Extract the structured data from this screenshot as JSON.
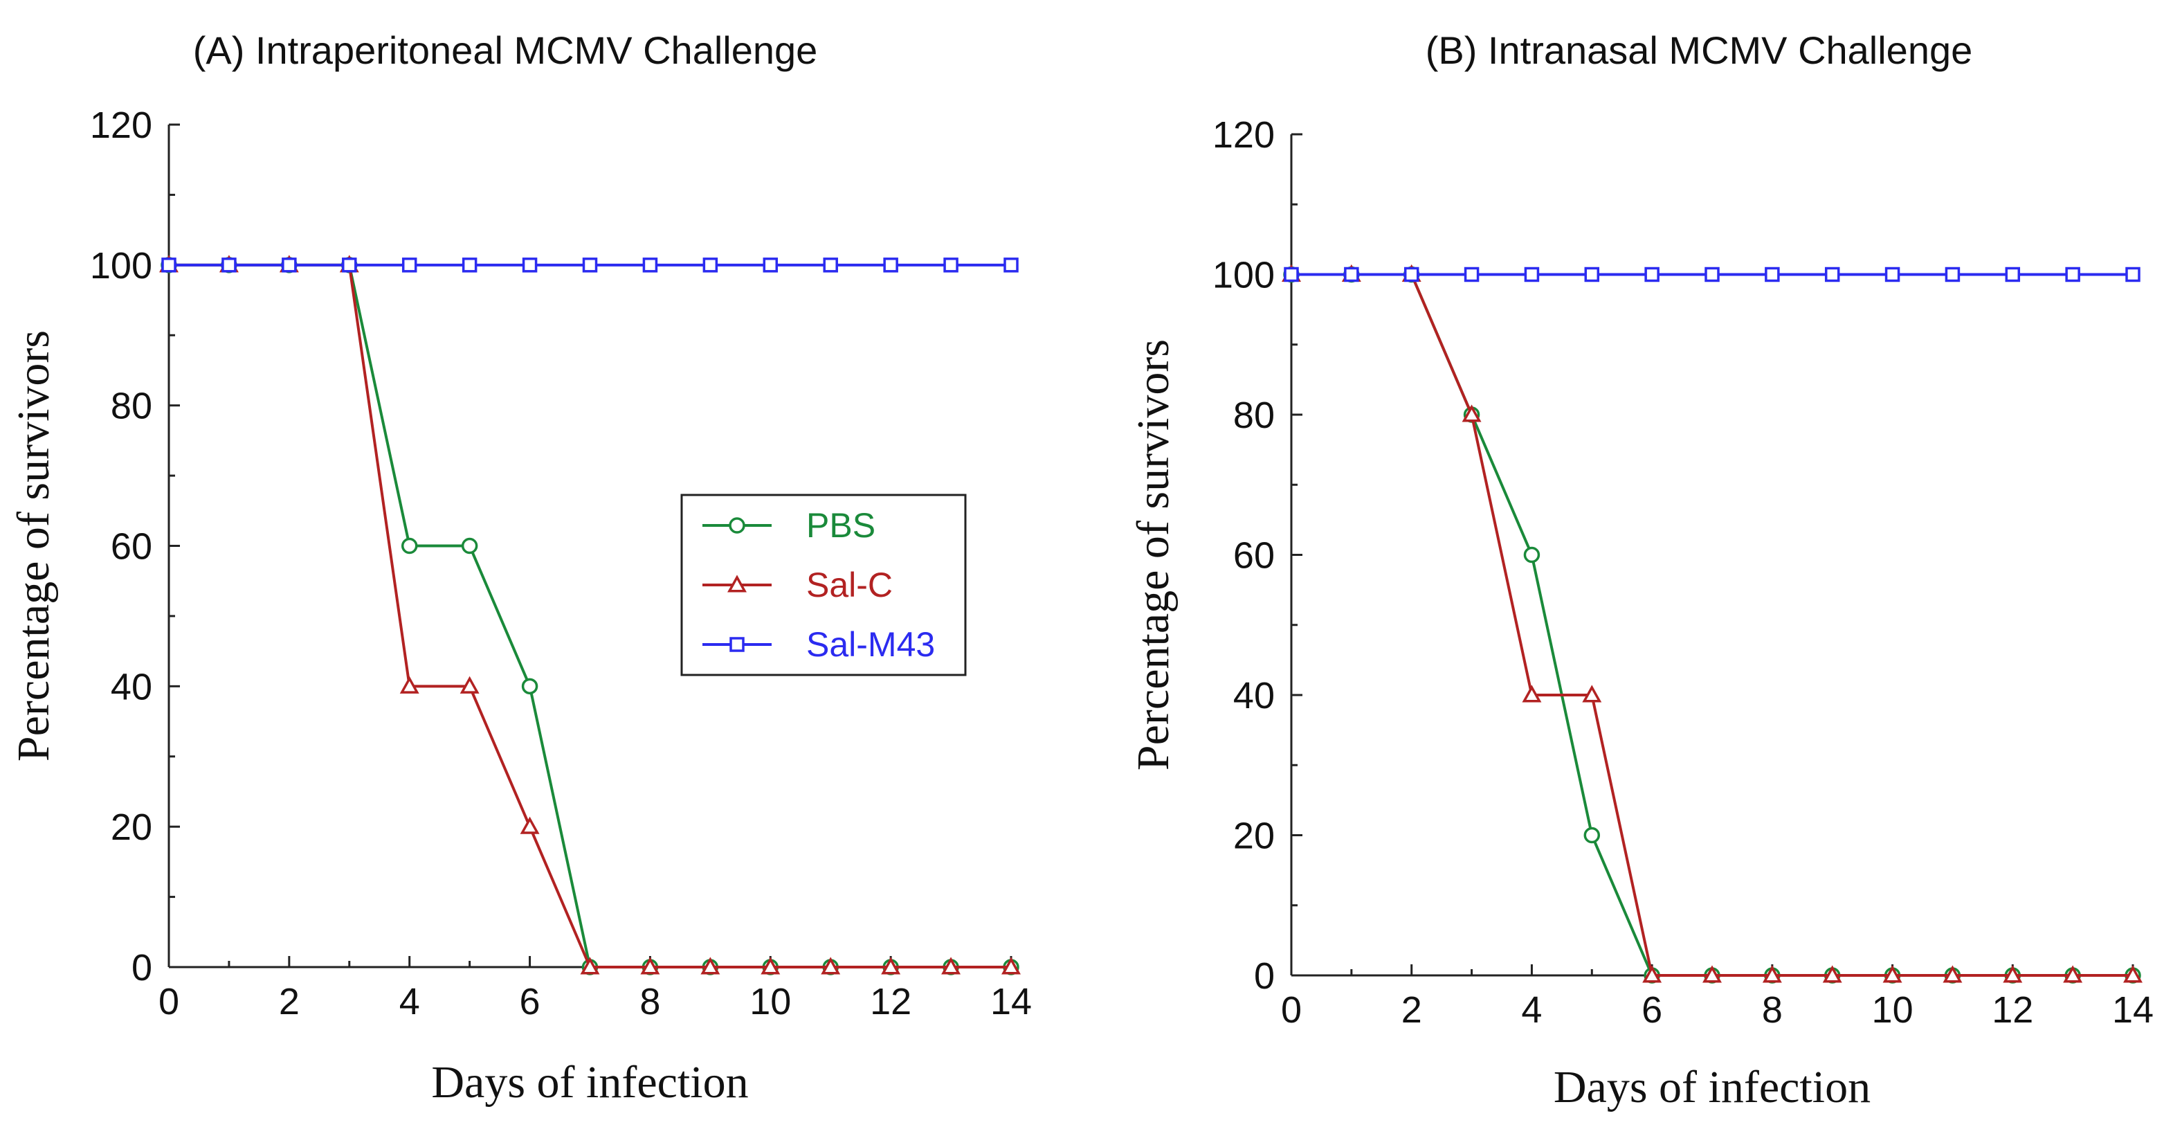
{
  "chart_data": [
    {
      "type": "line",
      "title": "(A) Intraperitoneal MCMV Challenge",
      "xlabel": "Days of infection",
      "ylabel": "Percentage of survivors",
      "xlim": [
        0,
        14
      ],
      "ylim": [
        0,
        120
      ],
      "xticks": [
        0,
        2,
        4,
        6,
        8,
        10,
        12,
        14
      ],
      "yticks": [
        0,
        20,
        40,
        60,
        80,
        100,
        120
      ],
      "x": [
        0,
        1,
        2,
        3,
        4,
        5,
        6,
        7,
        8,
        9,
        10,
        11,
        12,
        13,
        14
      ],
      "legend": "center-right",
      "series": [
        {
          "name": "PBS",
          "color": "#1a8a3a",
          "marker": "circle",
          "values": [
            100,
            100,
            100,
            100,
            60,
            60,
            40,
            0,
            0,
            0,
            0,
            0,
            0,
            0,
            0
          ]
        },
        {
          "name": "Sal-C",
          "color": "#b22222",
          "marker": "triangle",
          "values": [
            100,
            100,
            100,
            100,
            40,
            40,
            20,
            0,
            0,
            0,
            0,
            0,
            0,
            0,
            0
          ]
        },
        {
          "name": "Sal-M43",
          "color": "#2b2bf0",
          "marker": "square",
          "values": [
            100,
            100,
            100,
            100,
            100,
            100,
            100,
            100,
            100,
            100,
            100,
            100,
            100,
            100,
            100
          ]
        }
      ]
    },
    {
      "type": "line",
      "title": "(B) Intranasal MCMV Challenge",
      "xlabel": "Days of infection",
      "ylabel": "Percentage of survivors",
      "xlim": [
        0,
        14
      ],
      "ylim": [
        0,
        120
      ],
      "xticks": [
        0,
        2,
        4,
        6,
        8,
        10,
        12,
        14
      ],
      "yticks": [
        0,
        20,
        40,
        60,
        80,
        100,
        120
      ],
      "x": [
        0,
        1,
        2,
        3,
        4,
        5,
        6,
        7,
        8,
        9,
        10,
        11,
        12,
        13,
        14
      ],
      "legend": "none",
      "series": [
        {
          "name": "PBS",
          "color": "#1a8a3a",
          "marker": "circle",
          "values": [
            100,
            100,
            100,
            80,
            60,
            20,
            0,
            0,
            0,
            0,
            0,
            0,
            0,
            0,
            0
          ]
        },
        {
          "name": "Sal-C",
          "color": "#b22222",
          "marker": "triangle",
          "values": [
            100,
            100,
            100,
            80,
            40,
            40,
            0,
            0,
            0,
            0,
            0,
            0,
            0,
            0,
            0
          ]
        },
        {
          "name": "Sal-M43",
          "color": "#2b2bf0",
          "marker": "square",
          "values": [
            100,
            100,
            100,
            100,
            100,
            100,
            100,
            100,
            100,
            100,
            100,
            100,
            100,
            100,
            100
          ]
        }
      ]
    }
  ]
}
